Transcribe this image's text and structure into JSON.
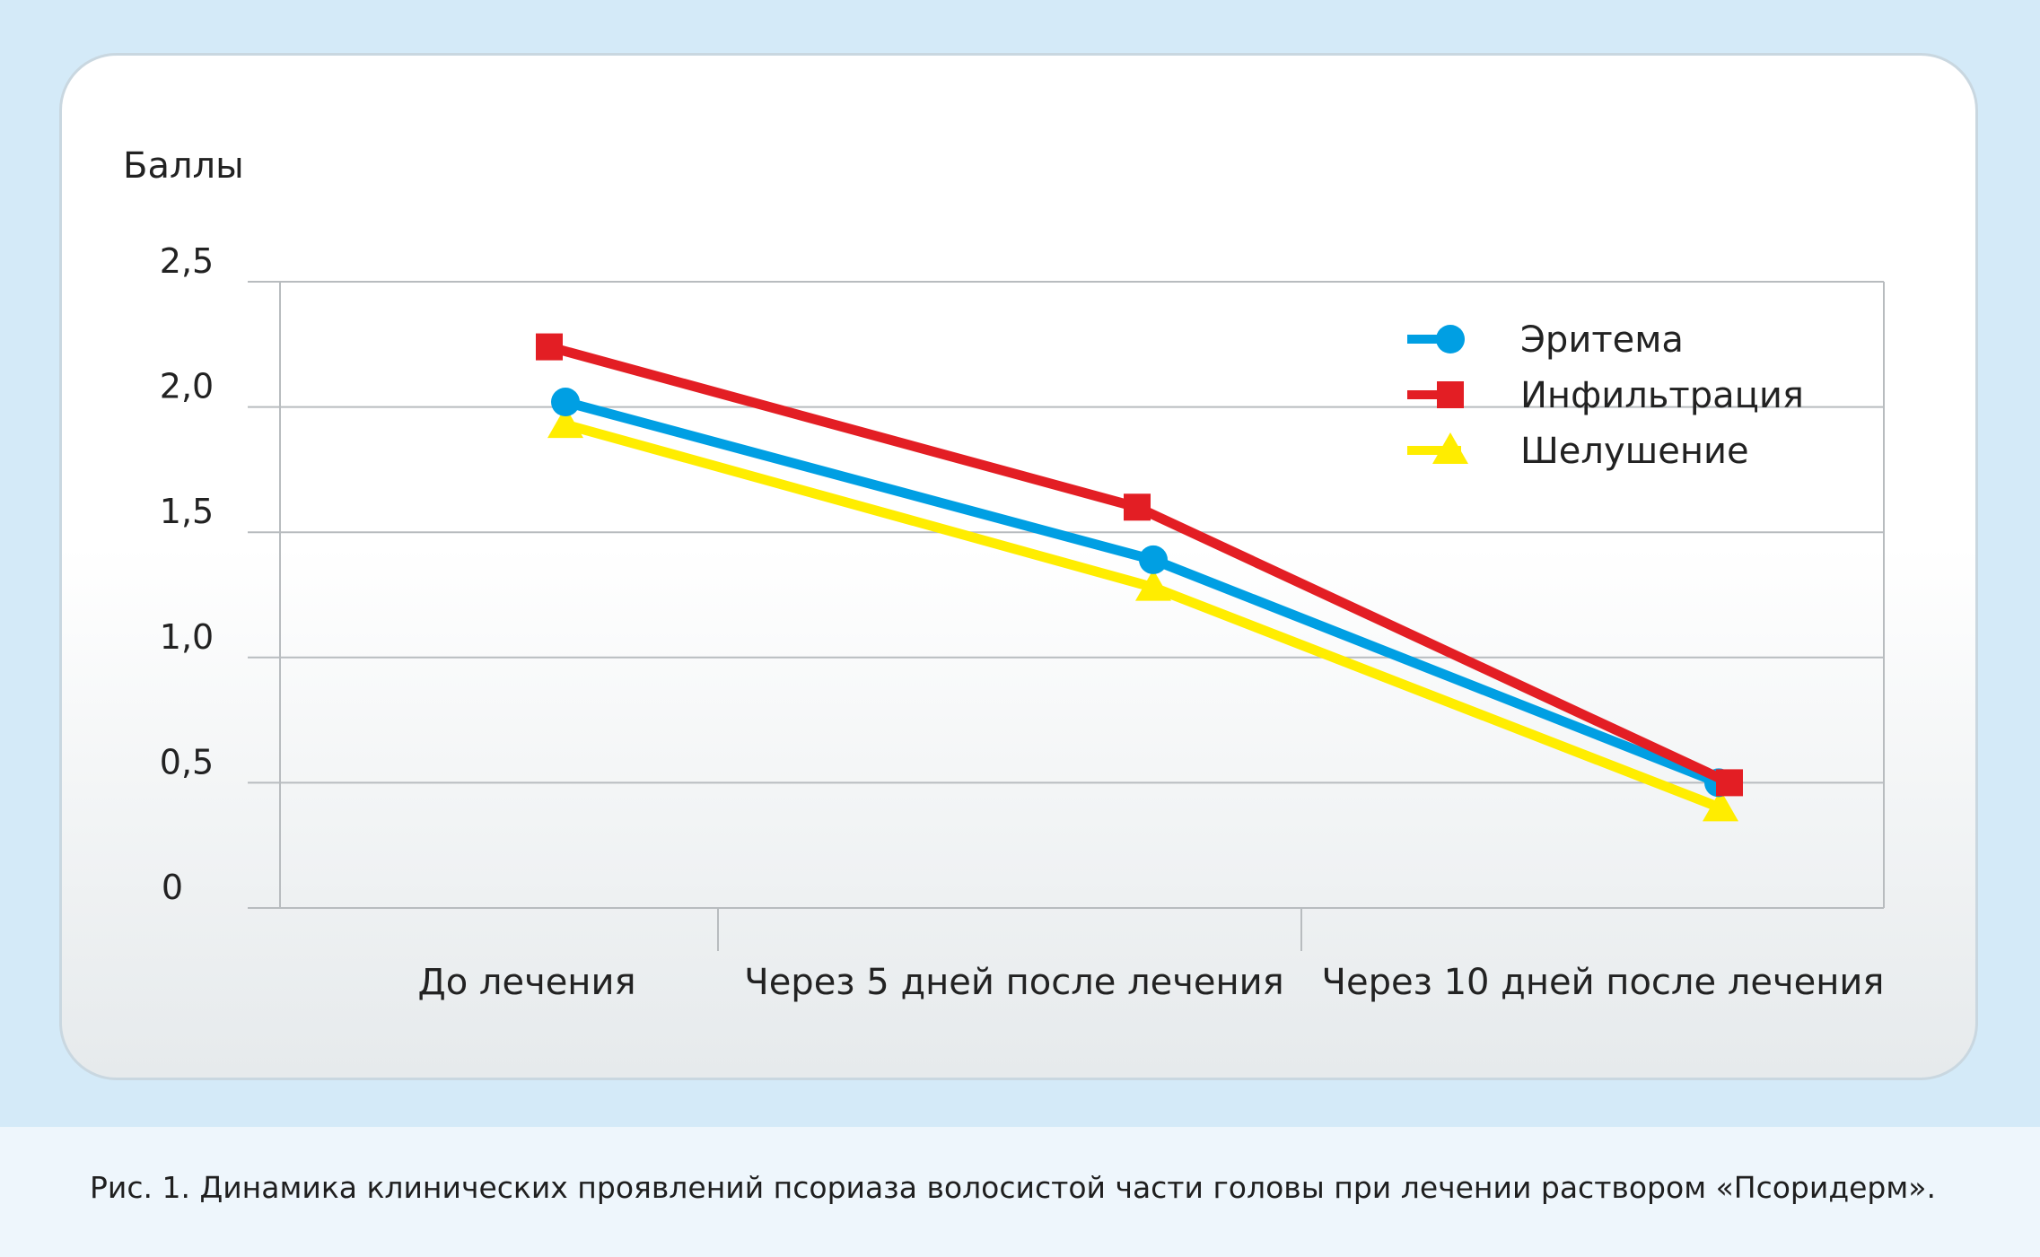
{
  "chart_data": {
    "type": "line",
    "ylabel": "Баллы",
    "yticks": [
      "0",
      "0,5",
      "1,0",
      "1,5",
      "2,0",
      "2,5"
    ],
    "ylim": [
      0,
      2.5
    ],
    "categories": [
      "До лечения",
      "Через 5 дней после лечения",
      "Через 10 дней после лечения"
    ],
    "grid": true,
    "legend_position": "top-right",
    "series": [
      {
        "name": "Эритема",
        "values": [
          2.02,
          1.39,
          0.5
        ],
        "color": "#009fe3",
        "marker": "circle"
      },
      {
        "name": "Инфильтрация",
        "values": [
          2.24,
          1.6,
          0.5
        ],
        "color": "#e31e24",
        "marker": "square"
      },
      {
        "name": "Шелушение",
        "values": [
          1.93,
          1.28,
          0.4
        ],
        "color": "#ffed00",
        "marker": "triangle"
      }
    ]
  },
  "caption": "Рис. 1. Динамика клинических проявлений псориаза волосистой части головы при лечении раствором «Псоридерм»."
}
